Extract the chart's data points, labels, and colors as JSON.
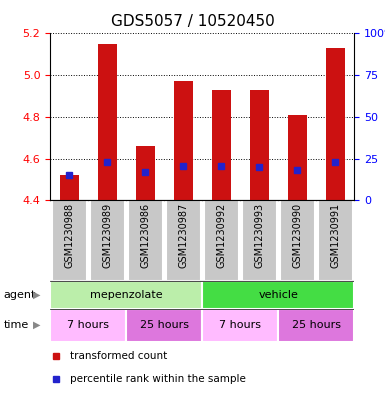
{
  "title": "GDS5057 / 10520450",
  "samples": [
    "GSM1230988",
    "GSM1230989",
    "GSM1230986",
    "GSM1230987",
    "GSM1230992",
    "GSM1230993",
    "GSM1230990",
    "GSM1230991"
  ],
  "bar_tops": [
    4.52,
    5.15,
    4.66,
    4.97,
    4.93,
    4.93,
    4.81,
    5.13
  ],
  "bar_bottom": 4.4,
  "percentile_values": [
    4.52,
    4.585,
    4.535,
    4.565,
    4.565,
    4.56,
    4.545,
    4.585
  ],
  "ylim": [
    4.4,
    5.2
  ],
  "yticks_left": [
    4.4,
    4.6,
    4.8,
    5.0,
    5.2
  ],
  "yticks_right": [
    0,
    25,
    50,
    75,
    100
  ],
  "yticks_right_labels": [
    "0",
    "25",
    "50",
    "75",
    "100%"
  ],
  "bar_color": "#cc1111",
  "percentile_color": "#2222cc",
  "agent_row": [
    {
      "label": "mepenzolate",
      "color": "#bbeeaa",
      "span": [
        0,
        4
      ]
    },
    {
      "label": "vehicle",
      "color": "#44dd44",
      "span": [
        4,
        8
      ]
    }
  ],
  "time_row": [
    {
      "label": "7 hours",
      "color": "#ffbbff",
      "span": [
        0,
        2
      ]
    },
    {
      "label": "25 hours",
      "color": "#dd77dd",
      "span": [
        2,
        4
      ]
    },
    {
      "label": "7 hours",
      "color": "#ffbbff",
      "span": [
        4,
        6
      ]
    },
    {
      "label": "25 hours",
      "color": "#dd77dd",
      "span": [
        6,
        8
      ]
    }
  ],
  "legend_items": [
    {
      "color": "#cc1111",
      "label": "transformed count"
    },
    {
      "color": "#2222cc",
      "label": "percentile rank within the sample"
    }
  ],
  "label_agent": "agent",
  "label_time": "time",
  "gray_box_color": "#c8c8c8",
  "title_fontsize": 11,
  "axis_tick_fontsize": 8,
  "sample_label_fontsize": 7,
  "row_label_fontsize": 8,
  "legend_fontsize": 7.5
}
